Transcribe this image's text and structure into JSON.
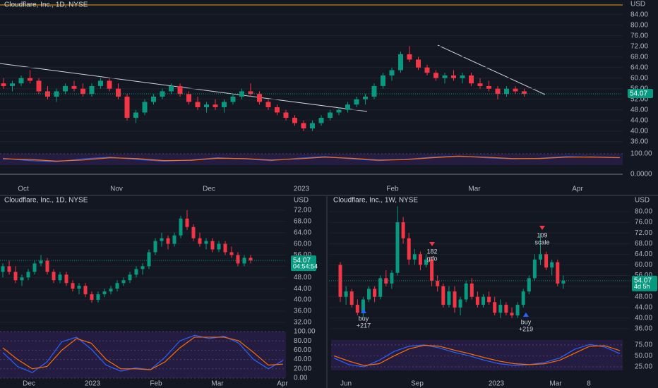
{
  "chart_data": [
    {
      "type": "candlestick",
      "title": "Cloudflare, Inc., 1D, NYSE",
      "currency": "USD",
      "last": 54.07,
      "candles": [
        [
          58,
          60,
          56,
          57
        ],
        [
          57,
          59,
          55,
          58
        ],
        [
          58,
          61,
          57,
          60
        ],
        [
          60,
          63,
          58,
          59
        ],
        [
          59,
          60,
          54,
          55
        ],
        [
          55,
          57,
          52,
          53
        ],
        [
          53,
          56,
          51,
          55
        ],
        [
          55,
          58,
          54,
          57
        ],
        [
          57,
          59,
          55,
          56
        ],
        [
          56,
          58,
          53,
          54
        ],
        [
          54,
          58,
          53,
          57
        ],
        [
          57,
          60,
          56,
          59
        ],
        [
          59,
          60,
          55,
          56
        ],
        [
          56,
          58,
          52,
          53
        ],
        [
          53,
          54,
          44,
          45
        ],
        [
          45,
          48,
          43,
          47
        ],
        [
          47,
          52,
          46,
          51
        ],
        [
          51,
          54,
          50,
          53
        ],
        [
          53,
          56,
          52,
          55
        ],
        [
          55,
          58,
          54,
          57
        ],
        [
          57,
          58,
          53,
          54
        ],
        [
          54,
          55,
          50,
          51
        ],
        [
          51,
          53,
          48,
          49
        ],
        [
          49,
          51,
          47,
          50
        ],
        [
          50,
          52,
          48,
          49
        ],
        [
          49,
          52,
          47,
          51
        ],
        [
          51,
          54,
          50,
          53
        ],
        [
          53,
          56,
          52,
          55
        ],
        [
          55,
          58,
          53,
          54
        ],
        [
          54,
          55,
          50,
          51
        ],
        [
          51,
          52,
          48,
          49
        ],
        [
          49,
          50,
          46,
          47
        ],
        [
          47,
          48,
          44,
          45
        ],
        [
          45,
          46,
          42,
          43
        ],
        [
          43,
          44,
          40,
          41
        ],
        [
          41,
          44,
          40,
          43
        ],
        [
          43,
          46,
          42,
          45
        ],
        [
          45,
          48,
          44,
          47
        ],
        [
          47,
          49,
          46,
          48
        ],
        [
          48,
          51,
          47,
          50
        ],
        [
          50,
          53,
          49,
          52
        ],
        [
          52,
          54,
          50,
          53
        ],
        [
          53,
          58,
          52,
          57
        ],
        [
          57,
          62,
          56,
          61
        ],
        [
          61,
          64,
          59,
          63
        ],
        [
          63,
          70,
          62,
          69
        ],
        [
          69,
          72,
          66,
          67
        ],
        [
          67,
          68,
          63,
          64
        ],
        [
          64,
          65,
          61,
          62
        ],
        [
          62,
          63,
          59,
          60
        ],
        [
          60,
          62,
          58,
          61
        ],
        [
          61,
          63,
          59,
          60
        ],
        [
          60,
          62,
          58,
          61
        ],
        [
          61,
          62,
          57,
          58
        ],
        [
          58,
          60,
          56,
          57
        ],
        [
          57,
          59,
          55,
          56
        ],
        [
          56,
          57,
          52,
          54
        ],
        [
          54,
          57,
          53,
          56
        ],
        [
          56,
          57,
          54,
          55
        ],
        [
          55,
          56,
          53,
          54.07
        ]
      ],
      "ylim": [
        33,
        89.5
      ],
      "yticks": [
        {
          "value": 36,
          "label": "36.00"
        },
        {
          "value": 40,
          "label": "40.00"
        },
        {
          "value": 44,
          "label": "44.00"
        },
        {
          "value": 48,
          "label": "48.00"
        },
        {
          "value": 52,
          "label": "52.00"
        },
        {
          "value": 56,
          "label": "56.00"
        },
        {
          "value": 60,
          "label": "60.00"
        },
        {
          "value": 64,
          "label": "64.00"
        },
        {
          "value": 68,
          "label": "68.00"
        },
        {
          "value": 72,
          "label": "72.00"
        },
        {
          "value": 76,
          "label": "76.00"
        },
        {
          "value": 80,
          "label": "80.00"
        },
        {
          "value": 84,
          "label": "84.00"
        }
      ],
      "x_labels": [
        "Oct",
        "Nov",
        "Dec",
        "2023",
        "Feb",
        "Mar",
        "Apr"
      ],
      "oscillator": {
        "ylim": [
          0,
          100
        ],
        "yticks": [
          {
            "value": 100,
            "label": "100.00"
          }
        ],
        "series": [
          {
            "color": "#2962ff",
            "values": [
              60,
              40,
              30,
              55,
              70,
              50,
              35,
              45,
              65,
              55,
              40,
              60,
              75,
              55,
              40,
              50,
              70,
              80,
              65,
              55,
              60,
              75,
              70,
              65
            ]
          },
          {
            "color": "#ff6d00",
            "values": [
              55,
              50,
              35,
              45,
              65,
              58,
              40,
              42,
              60,
              58,
              45,
              55,
              70,
              60,
              45,
              48,
              65,
              78,
              70,
              58,
              58,
              70,
              72,
              66
            ]
          }
        ]
      },
      "oscillator2": {
        "ylim": [
          -1,
          1
        ],
        "yticks": [
          {
            "value": 0,
            "label": "0.0000"
          }
        ]
      }
    },
    {
      "type": "candlestick",
      "title": "Cloudflare, Inc., 1D, NYSE",
      "currency": "USD",
      "last": 54.07,
      "countdown": "04:54:54",
      "candles": [
        [
          50,
          53,
          48,
          52
        ],
        [
          52,
          54,
          49,
          50
        ],
        [
          50,
          52,
          46,
          47
        ],
        [
          47,
          49,
          45,
          48
        ],
        [
          48,
          51,
          47,
          50
        ],
        [
          50,
          54,
          49,
          53
        ],
        [
          53,
          56,
          52,
          54
        ],
        [
          54,
          55,
          49,
          50
        ],
        [
          50,
          51,
          46,
          47
        ],
        [
          47,
          50,
          46,
          49
        ],
        [
          49,
          50,
          45,
          46
        ],
        [
          46,
          47,
          43,
          44
        ],
        [
          44,
          46,
          42,
          45
        ],
        [
          45,
          46,
          41,
          42
        ],
        [
          42,
          43,
          39,
          40
        ],
        [
          40,
          43,
          39,
          42
        ],
        [
          42,
          44,
          41,
          43
        ],
        [
          43,
          45,
          42,
          44
        ],
        [
          44,
          47,
          43,
          46
        ],
        [
          46,
          48,
          45,
          47
        ],
        [
          47,
          50,
          46,
          49
        ],
        [
          49,
          52,
          48,
          51
        ],
        [
          51,
          53,
          49,
          52
        ],
        [
          52,
          58,
          51,
          57
        ],
        [
          57,
          62,
          56,
          61
        ],
        [
          61,
          64,
          59,
          62
        ],
        [
          62,
          63,
          58,
          60
        ],
        [
          60,
          64,
          59,
          63
        ],
        [
          63,
          70,
          62,
          69
        ],
        [
          69,
          72,
          65,
          66
        ],
        [
          66,
          67,
          61,
          62
        ],
        [
          62,
          64,
          59,
          60
        ],
        [
          60,
          62,
          58,
          61
        ],
        [
          61,
          62,
          57,
          58
        ],
        [
          58,
          61,
          57,
          60
        ],
        [
          60,
          61,
          56,
          57
        ],
        [
          57,
          59,
          55,
          56
        ],
        [
          56,
          57,
          52,
          53
        ],
        [
          53,
          56,
          52,
          55
        ],
        [
          55,
          56,
          53,
          54.07
        ]
      ],
      "ylim": [
        30.7,
        74
      ],
      "yticks": [
        {
          "value": 32,
          "label": "32.00"
        },
        {
          "value": 36,
          "label": "36.00"
        },
        {
          "value": 40,
          "label": "40.00"
        },
        {
          "value": 44,
          "label": "44.00"
        },
        {
          "value": 48,
          "label": "48.00"
        },
        {
          "value": 52,
          "label": "52.00"
        },
        {
          "value": 56,
          "label": "56.00"
        },
        {
          "value": 60,
          "label": "60.00"
        },
        {
          "value": 64,
          "label": "64.00"
        },
        {
          "value": 68,
          "label": "68.00"
        },
        {
          "value": 72,
          "label": "72.00"
        }
      ],
      "x_labels": [
        "Dec",
        "2023",
        "Feb",
        "Mar",
        "Apr"
      ],
      "oscillator": {
        "ylim": [
          0,
          100
        ],
        "yticks": [
          {
            "value": 0,
            "label": "0.00"
          },
          {
            "value": 20,
            "label": "20.00"
          },
          {
            "value": 40,
            "label": "40.00"
          },
          {
            "value": 60,
            "label": "60.00"
          },
          {
            "value": 80,
            "label": "80.00"
          },
          {
            "value": 100,
            "label": "100.00"
          }
        ],
        "series": [
          {
            "color": "#2962ff",
            "values": [
              55,
              25,
              12,
              35,
              78,
              88,
              62,
              28,
              15,
              22,
              18,
              45,
              80,
              92,
              85,
              90,
              75,
              40,
              20,
              38
            ]
          },
          {
            "color": "#ff6d00",
            "values": [
              65,
              40,
              20,
              25,
              60,
              85,
              75,
              40,
              20,
              20,
              18,
              35,
              65,
              88,
              88,
              88,
              80,
              55,
              28,
              30
            ]
          }
        ]
      }
    },
    {
      "type": "candlestick",
      "title": "Cloudflare, Inc., 1W, NYSE",
      "currency": "USD",
      "last": 54.07,
      "countdown": "4d 5h",
      "candles": [
        [
          60,
          61,
          46,
          48
        ],
        [
          48,
          52,
          45,
          50
        ],
        [
          50,
          51,
          44,
          45
        ],
        [
          45,
          47,
          41,
          42
        ],
        [
          42,
          48,
          40,
          47
        ],
        [
          47,
          52,
          46,
          51
        ],
        [
          51,
          52,
          46,
          48
        ],
        [
          48,
          56,
          47,
          55
        ],
        [
          55,
          58,
          52,
          53
        ],
        [
          53,
          58,
          51,
          57
        ],
        [
          57,
          82,
          56,
          76
        ],
        [
          76,
          78,
          68,
          70
        ],
        [
          70,
          72,
          60,
          62
        ],
        [
          62,
          66,
          60,
          64
        ],
        [
          64,
          65,
          58,
          60
        ],
        [
          60,
          64,
          59,
          62
        ],
        [
          62,
          63,
          52,
          54
        ],
        [
          54,
          56,
          50,
          52
        ],
        [
          52,
          53,
          44,
          45
        ],
        [
          45,
          52,
          44,
          50
        ],
        [
          50,
          52,
          42,
          44
        ],
        [
          44,
          48,
          41,
          47
        ],
        [
          47,
          54,
          46,
          53
        ],
        [
          53,
          55,
          47,
          48
        ],
        [
          48,
          50,
          44,
          45
        ],
        [
          45,
          49,
          44,
          48
        ],
        [
          48,
          50,
          45,
          46
        ],
        [
          46,
          48,
          41,
          42
        ],
        [
          42,
          47,
          40,
          45
        ],
        [
          45,
          46,
          41,
          42
        ],
        [
          42,
          44,
          40,
          41
        ],
        [
          41,
          46,
          40,
          45
        ],
        [
          45,
          51,
          44,
          50
        ],
        [
          50,
          56,
          49,
          55
        ],
        [
          55,
          64,
          54,
          62
        ],
        [
          62,
          72,
          60,
          64
        ],
        [
          64,
          65,
          58,
          59
        ],
        [
          59,
          62,
          56,
          61
        ],
        [
          61,
          62,
          52,
          53
        ],
        [
          53,
          56,
          51,
          54.07
        ]
      ],
      "ylim": [
        33.35,
        82.65
      ],
      "yticks": [
        {
          "value": 36,
          "label": "36.00"
        },
        {
          "value": 40,
          "label": "40.00"
        },
        {
          "value": 44,
          "label": "44.00"
        },
        {
          "value": 48,
          "label": "48.00"
        },
        {
          "value": 52,
          "label": "52.00"
        },
        {
          "value": 56,
          "label": "56.00"
        },
        {
          "value": 60,
          "label": "60.00"
        },
        {
          "value": 64,
          "label": "64.00"
        },
        {
          "value": 68,
          "label": "68.00"
        },
        {
          "value": 72,
          "label": "72.00"
        },
        {
          "value": 76,
          "label": "76.00"
        },
        {
          "value": 80,
          "label": "80.00"
        }
      ],
      "x_labels": [
        "Jun",
        "Sep",
        "2023",
        "Mar",
        "8"
      ],
      "annotations": [
        {
          "lines": [
            "buy",
            "+217"
          ]
        },
        {
          "lines": [
            "182",
            "gtfo"
          ]
        },
        {
          "lines": [
            "109",
            "scale"
          ]
        },
        {
          "lines": [
            "buy",
            "+219"
          ]
        }
      ],
      "oscillator": {
        "ylim": [
          17,
          86
        ],
        "yticks": [
          {
            "value": 25,
            "label": "25.00"
          },
          {
            "value": 50,
            "label": "50.00"
          },
          {
            "value": 75,
            "label": "75.00"
          }
        ],
        "series": [
          {
            "color": "#2962ff",
            "values": [
              45,
              30,
              25,
              40,
              60,
              72,
              75,
              68,
              58,
              50,
              40,
              32,
              28,
              30,
              35,
              45,
              65,
              76,
              70,
              55
            ]
          },
          {
            "color": "#ff6d00",
            "values": [
              50,
              38,
              28,
              32,
              50,
              66,
              74,
              72,
              63,
              55,
              46,
              38,
              32,
              30,
              32,
              40,
              56,
              72,
              73,
              62
            ]
          }
        ]
      }
    }
  ]
}
